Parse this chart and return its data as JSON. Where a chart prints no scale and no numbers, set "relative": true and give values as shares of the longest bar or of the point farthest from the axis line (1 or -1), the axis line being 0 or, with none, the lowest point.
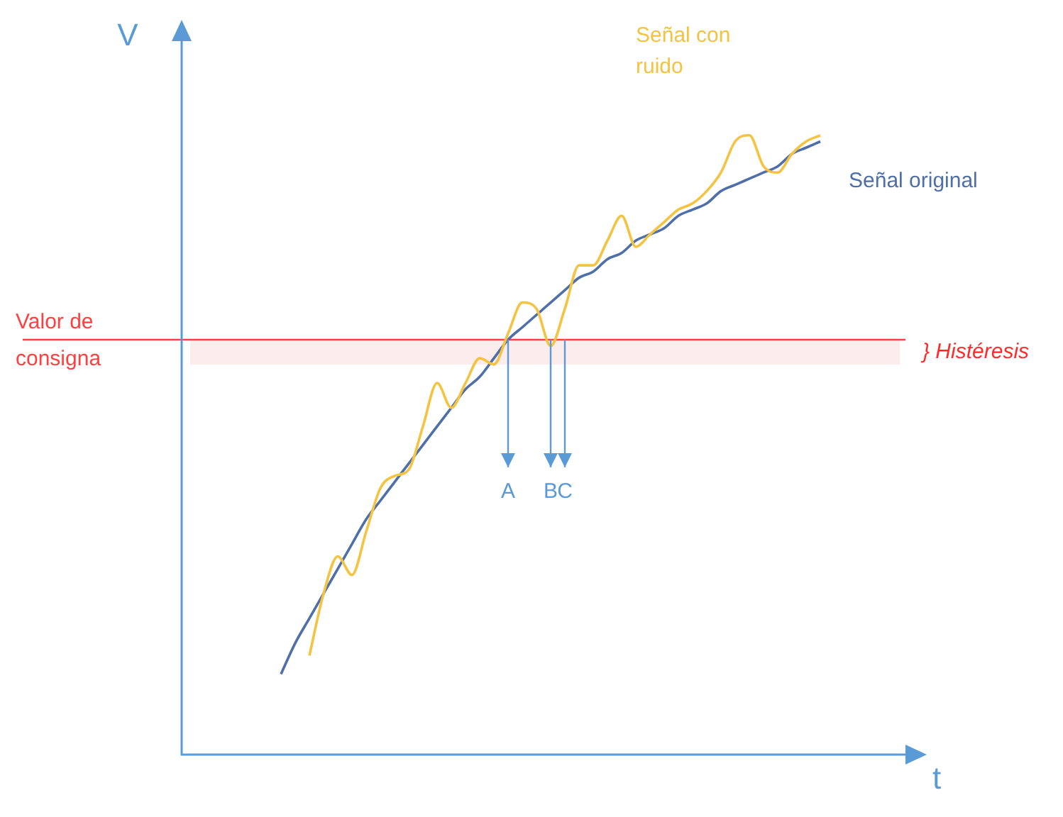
{
  "chart_data": {
    "type": "line",
    "xlabel": "t",
    "ylabel": "V",
    "relative": true,
    "categories": [
      null,
      null,
      null,
      null,
      null,
      null,
      null,
      null,
      null,
      null,
      null,
      null,
      null,
      null,
      null,
      null,
      null,
      null,
      null,
      null,
      null,
      null,
      null,
      null,
      null,
      null,
      null,
      null,
      null,
      null,
      null,
      null,
      null,
      null,
      null,
      null,
      null,
      null,
      null,
      null,
      null,
      null,
      null,
      null,
      null,
      null,
      null,
      null,
      null,
      null,
      null
    ],
    "series": [
      {
        "name": "Señal original",
        "color": "#4f6fa8",
        "values": [
          null,
          null,
          null,
          null,
          null,
          null,
          null,
          0.13,
          0.18,
          0.22,
          0.26,
          0.3,
          0.34,
          0.38,
          0.41,
          0.44,
          0.47,
          0.5,
          0.53,
          0.56,
          0.59,
          0.61,
          0.64,
          0.67,
          0.69,
          0.71,
          0.73,
          0.75,
          0.77,
          0.78,
          0.8,
          0.81,
          0.83,
          0.84,
          0.85,
          0.87,
          0.88,
          0.89,
          0.91,
          0.92,
          0.93,
          0.94,
          0.95,
          0.97,
          0.98,
          0.99,
          null,
          null,
          null,
          null,
          null
        ]
      },
      {
        "name": "Señal con ruido",
        "color": "#f5c342",
        "values": [
          null,
          null,
          null,
          null,
          null,
          null,
          null,
          null,
          null,
          0.16,
          0.26,
          0.32,
          0.29,
          0.36,
          0.43,
          0.45,
          0.46,
          0.53,
          0.6,
          0.56,
          0.6,
          0.64,
          0.63,
          0.68,
          0.73,
          0.72,
          0.66,
          0.72,
          0.79,
          0.79,
          0.83,
          0.87,
          0.82,
          0.84,
          0.86,
          0.88,
          0.89,
          0.91,
          0.94,
          0.99,
          1.0,
          0.95,
          0.94,
          0.97,
          0.99,
          1.0,
          null,
          null,
          null,
          null,
          null
        ]
      }
    ],
    "ref_lines": [
      {
        "axis": "y",
        "value": 0.67,
        "label": "Valor de consigna",
        "color": "#ff4040"
      }
    ],
    "bands": [
      {
        "axis": "y",
        "from": 0.63,
        "to": 0.67,
        "label": "} Histéresis",
        "color": "#fdecec"
      }
    ],
    "annotations": [
      "A",
      "B",
      "C"
    ]
  }
}
